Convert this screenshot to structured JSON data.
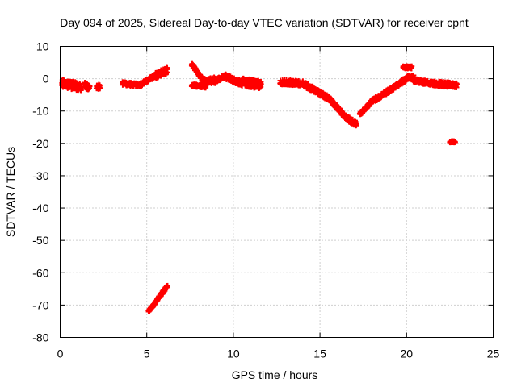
{
  "chart_data": {
    "type": "scatter",
    "title": "Day 094 of 2025, Sidereal Day-to-day VTEC variation (SDTVAR) for receiver cpnt",
    "xlabel": "GPS time / hours",
    "ylabel": "SDTVAR / TECUs",
    "xlim": [
      0,
      25
    ],
    "ylim": [
      -80,
      10
    ],
    "xticks": [
      "0",
      "5",
      "10",
      "15",
      "20",
      "25"
    ],
    "yticks": [
      "10",
      "0",
      "-10",
      "-20",
      "-30",
      "-40",
      "-50",
      "-60",
      "-70",
      "-80"
    ],
    "grid": true,
    "marker": "plus",
    "color": "#ff0000",
    "segments": [
      {
        "x0": 0.1,
        "x1": 1.2,
        "y0": -1.5,
        "y1": -2.5,
        "band": 2.5
      },
      {
        "x0": 1.4,
        "x1": 1.7,
        "y0": -2.0,
        "y1": -3.0,
        "band": 2.0
      },
      {
        "x0": 2.1,
        "x1": 2.3,
        "y0": -2.5,
        "y1": -2.5,
        "band": 1.5
      },
      {
        "x0": 3.6,
        "x1": 4.6,
        "y0": -1.5,
        "y1": -2.0,
        "band": 1.0
      },
      {
        "x0": 4.6,
        "x1": 5.5,
        "y0": -2.0,
        "y1": 1.0,
        "band": 1.0
      },
      {
        "x0": 5.5,
        "x1": 6.2,
        "y0": 1.0,
        "y1": 2.5,
        "band": 2.0
      },
      {
        "x0": 5.1,
        "x1": 6.2,
        "y0": -72.0,
        "y1": -64.0,
        "band": 0.8
      },
      {
        "x0": 7.6,
        "x1": 8.3,
        "y0": 4.5,
        "y1": -1.0,
        "band": 1.0
      },
      {
        "x0": 7.6,
        "x1": 8.4,
        "y0": -2.0,
        "y1": -2.5,
        "band": 0.8
      },
      {
        "x0": 8.3,
        "x1": 9.0,
        "y0": -1.0,
        "y1": -0.5,
        "band": 2.0
      },
      {
        "x0": 9.0,
        "x1": 9.6,
        "y0": -0.5,
        "y1": 1.0,
        "band": 1.0
      },
      {
        "x0": 9.6,
        "x1": 10.5,
        "y0": 0.5,
        "y1": -1.5,
        "band": 1.5
      },
      {
        "x0": 10.5,
        "x1": 11.6,
        "y0": -1.0,
        "y1": -2.0,
        "band": 2.5
      },
      {
        "x0": 12.7,
        "x1": 14.0,
        "y0": -1.0,
        "y1": -1.5,
        "band": 1.5
      },
      {
        "x0": 14.0,
        "x1": 15.5,
        "y0": -1.5,
        "y1": -6.0,
        "band": 1.5
      },
      {
        "x0": 15.5,
        "x1": 16.5,
        "y0": -6.0,
        "y1": -12.0,
        "band": 1.2
      },
      {
        "x0": 16.5,
        "x1": 17.1,
        "y0": -12.0,
        "y1": -14.0,
        "band": 1.5
      },
      {
        "x0": 17.3,
        "x1": 18.0,
        "y0": -11.0,
        "y1": -7.0,
        "band": 1.0
      },
      {
        "x0": 18.0,
        "x1": 19.2,
        "y0": -7.0,
        "y1": -3.0,
        "band": 1.2
      },
      {
        "x0": 19.2,
        "x1": 20.0,
        "y0": -3.0,
        "y1": 0.0,
        "band": 1.2
      },
      {
        "x0": 19.8,
        "x1": 20.3,
        "y0": 3.5,
        "y1": 3.5,
        "band": 0.8
      },
      {
        "x0": 20.0,
        "x1": 20.4,
        "y0": 0.5,
        "y1": 0.5,
        "band": 1.2
      },
      {
        "x0": 20.4,
        "x1": 21.5,
        "y0": -0.5,
        "y1": -1.5,
        "band": 1.2
      },
      {
        "x0": 21.5,
        "x1": 22.9,
        "y0": -1.5,
        "y1": -2.0,
        "band": 1.5
      },
      {
        "x0": 22.5,
        "x1": 22.8,
        "y0": -19.5,
        "y1": -19.5,
        "band": 0.4
      }
    ]
  }
}
